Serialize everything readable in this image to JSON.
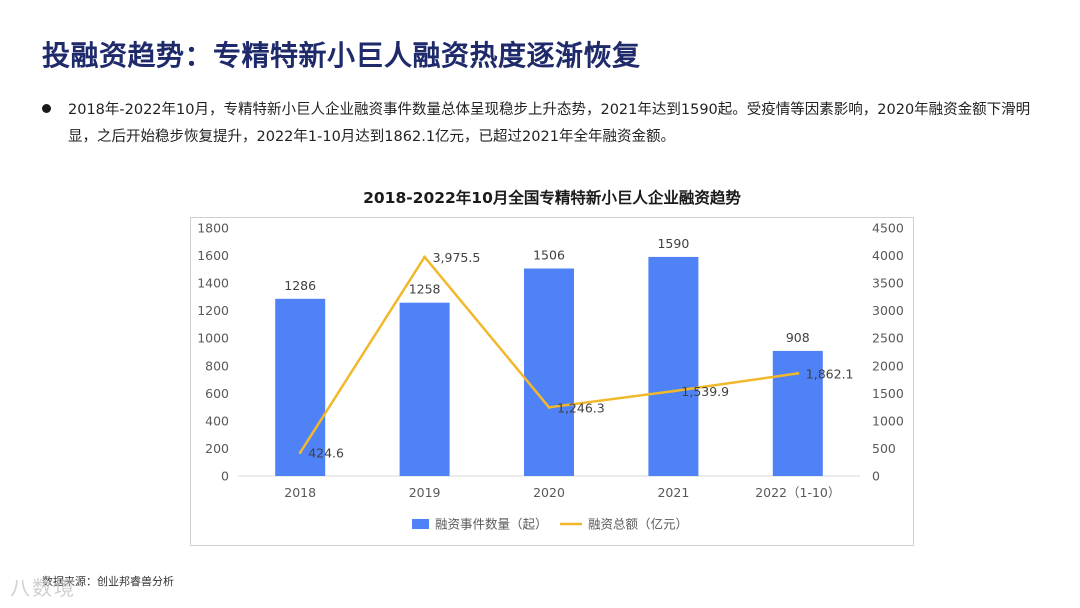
{
  "page": {
    "title": "投融资趋势：专精特新小巨人融资热度逐渐恢复",
    "bullet": "2018年-2022年10月，专精特新小巨人企业融资事件数量总体呈现稳步上升态势，2021年达到1590起。受疫情等因素影响，2020年融资金额下滑明显，之后开始稳步恢复提升，2022年1-10月达到1862.1亿元，已超过2021年全年融资金额。",
    "source": "数据来源：创业邦睿兽分析",
    "watermark": "八数境"
  },
  "chart_data": {
    "type": "bar",
    "title": "2018-2022年10月全国专精特新小巨人企业融资趋势",
    "categories": [
      "2018",
      "2019",
      "2020",
      "2021",
      "2022（1-10）"
    ],
    "series": [
      {
        "name": "融资事件数量（起）",
        "type": "bar",
        "axis": "left",
        "color": "#4f81f7",
        "values": [
          1286,
          1258,
          1506,
          1590,
          908
        ],
        "labels": [
          "1286",
          "1258",
          "1506",
          "1590",
          "908"
        ]
      },
      {
        "name": "融资总额（亿元）",
        "type": "line",
        "axis": "right",
        "color": "#f2b82b",
        "values": [
          424.6,
          3975.5,
          1246.3,
          1539.9,
          1862.1
        ],
        "labels": [
          "424.6",
          "3,975.5",
          "1,246.3",
          "1,539.9",
          "1,862.1"
        ]
      }
    ],
    "y_left": {
      "min": 0,
      "max": 1800,
      "ticks": [
        "0",
        "200",
        "400",
        "600",
        "800",
        "1000",
        "1200",
        "1400",
        "1600",
        "1800"
      ]
    },
    "y_right": {
      "min": 0,
      "max": 4500,
      "ticks": [
        "0",
        "500",
        "1000",
        "1500",
        "2000",
        "2500",
        "3000",
        "3500",
        "4000",
        "4500"
      ]
    },
    "grid": false,
    "legend": "bottom"
  }
}
